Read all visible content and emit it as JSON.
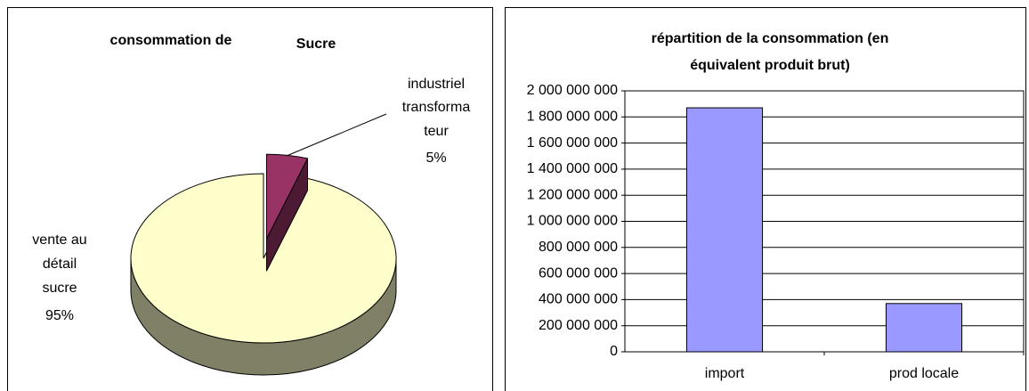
{
  "chart_data": [
    {
      "type": "pie",
      "title": [
        "consommation de",
        "Sucre"
      ],
      "categories": [
        [
          "industriel",
          "transforma",
          "teur"
        ],
        [
          "vente au",
          "détail",
          "sucre"
        ]
      ],
      "values": [
        5,
        95
      ],
      "value_labels": [
        "5%",
        "95%"
      ],
      "colors": [
        "#993366",
        "#ffffcc"
      ],
      "side_colors": [
        "#4d1a33",
        "#808066"
      ],
      "explode": [
        0
      ]
    },
    {
      "type": "bar",
      "title": [
        "répartition de la consommation (en",
        "équivalent produit brut)"
      ],
      "categories": [
        "import",
        "prod locale"
      ],
      "values": [
        1870000000,
        370000000
      ],
      "color": "#9999ff",
      "ylim": [
        0,
        2000000000
      ],
      "yticks": [
        0,
        {
          "value": 200000000,
          "label": "200 000 000"
        },
        {
          "value": 400000000,
          "label": "400 000 000"
        },
        {
          "value": 600000000,
          "label": "600 000 000"
        },
        {
          "value": 800000000,
          "label": "800 000 000"
        },
        {
          "value": 1000000000,
          "label": "1 000 000 000"
        },
        {
          "value": 1200000000,
          "label": "1 200 000 000"
        },
        {
          "value": 1400000000,
          "label": "1 400 000 000"
        },
        {
          "value": 1600000000,
          "label": "1 600 000 000"
        },
        {
          "value": 1800000000,
          "label": "1 800 000 000"
        },
        {
          "value": 2000000000,
          "label": "2 000 000 000"
        }
      ],
      "grid": true
    }
  ]
}
